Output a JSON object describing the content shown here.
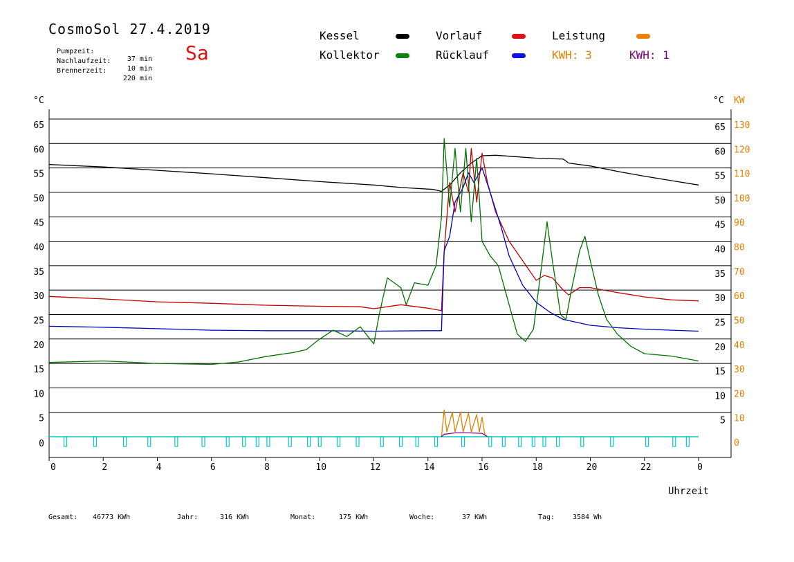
{
  "header": {
    "title": "CosmoSol 27.4.2019",
    "weekday": "Sa",
    "stats": [
      {
        "label": "Pumpzeit:",
        "value": "37 min"
      },
      {
        "label": "Nachlaufzeit:",
        "value": "10 min"
      },
      {
        "label": "Brennerzeit:",
        "value": "220 min"
      }
    ]
  },
  "legend": {
    "kessel": "Kessel",
    "vorlauf": "Vorlauf",
    "leistung": "Leistung",
    "kollektor": "Kollektor",
    "ruecklauf": "Rücklauf",
    "kwh_a": "KWH: 3",
    "kwh_b": "KWH: 1"
  },
  "colors": {
    "kessel": "#000000",
    "vorlauf": "#c00000",
    "leistung": "#e08000",
    "kollektor": "#007000",
    "ruecklauf": "#0000c0",
    "kwh_b": "#800080",
    "pump": "#00c8c8"
  },
  "footer": {
    "gesamt_label": "Gesamt:",
    "gesamt_value": "46773 KWh",
    "jahr_label": "Jahr:",
    "jahr_value": "316 KWh",
    "monat_label": "Monat:",
    "monat_value": "175 KWh",
    "woche_label": "Woche:",
    "woche_value": "37 KWh",
    "tag_label": "Tag:",
    "tag_value": "3584 Wh"
  },
  "chart_data": {
    "type": "line",
    "xlabel": "Uhrzeit",
    "x_ticks": [
      "0",
      "2",
      "4",
      "6",
      "8",
      "10",
      "12",
      "14",
      "16",
      "18",
      "20",
      "22",
      "0"
    ],
    "xlim": [
      0,
      24
    ],
    "ylabel_left": "°C",
    "ylabel_right_temp": "°C",
    "ylabel_right_power": "KW",
    "ylim": [
      0,
      65
    ],
    "y_ticks_left": [
      "0",
      "5",
      "10",
      "15",
      "20",
      "25",
      "30",
      "35",
      "40",
      "45",
      "50",
      "55",
      "60",
      "65"
    ],
    "y_ticks_right_temp": [
      "5",
      "10",
      "15",
      "20",
      "25",
      "30",
      "35",
      "40",
      "45",
      "50",
      "55",
      "60",
      "65"
    ],
    "y_ticks_right_power": [
      "0",
      "10",
      "20",
      "30",
      "40",
      "50",
      "60",
      "70",
      "80",
      "90",
      "100",
      "110",
      "120",
      "130"
    ],
    "grid": true,
    "series": [
      {
        "name": "Kessel",
        "color": "#000000",
        "points": [
          [
            0,
            55.7
          ],
          [
            2,
            55.2
          ],
          [
            4,
            54.5
          ],
          [
            6,
            53.8
          ],
          [
            8,
            53.0
          ],
          [
            10,
            52.2
          ],
          [
            12,
            51.5
          ],
          [
            13,
            51.0
          ],
          [
            14.2,
            50.6
          ],
          [
            14.5,
            50.2
          ],
          [
            14.8,
            51.5
          ],
          [
            15.2,
            54
          ],
          [
            15.6,
            56
          ],
          [
            16,
            57.5
          ],
          [
            16.5,
            57.6
          ],
          [
            17,
            57.4
          ],
          [
            18,
            57.0
          ],
          [
            19,
            56.8
          ],
          [
            19.2,
            56.0
          ],
          [
            20,
            55.4
          ],
          [
            21,
            54.3
          ],
          [
            22,
            53.3
          ],
          [
            23,
            52.4
          ],
          [
            24,
            51.5
          ]
        ]
      },
      {
        "name": "Vorlauf",
        "color": "#c00000",
        "points": [
          [
            0,
            28.7
          ],
          [
            2,
            28.2
          ],
          [
            4,
            27.6
          ],
          [
            6,
            27.3
          ],
          [
            8,
            26.9
          ],
          [
            10,
            26.7
          ],
          [
            11.5,
            26.6
          ],
          [
            12,
            26.2
          ],
          [
            13,
            27.0
          ],
          [
            14,
            26.3
          ],
          [
            14.5,
            25.8
          ],
          [
            14.6,
            38
          ],
          [
            14.8,
            52
          ],
          [
            15,
            46
          ],
          [
            15.3,
            54
          ],
          [
            15.5,
            50
          ],
          [
            15.6,
            59
          ],
          [
            15.8,
            48
          ],
          [
            16,
            58
          ],
          [
            16.2,
            52
          ],
          [
            16.5,
            46
          ],
          [
            17,
            40
          ],
          [
            17.5,
            36
          ],
          [
            18,
            32
          ],
          [
            18.3,
            33
          ],
          [
            18.6,
            32.5
          ],
          [
            19,
            30
          ],
          [
            19.2,
            29
          ],
          [
            19.6,
            30.5
          ],
          [
            20,
            30.5
          ],
          [
            21,
            29.5
          ],
          [
            22,
            28.6
          ],
          [
            23,
            28
          ],
          [
            24,
            27.8
          ]
        ]
      },
      {
        "name": "Rücklauf",
        "color": "#0000c0",
        "points": [
          [
            0,
            22.6
          ],
          [
            2,
            22.4
          ],
          [
            4,
            22.1
          ],
          [
            6,
            21.8
          ],
          [
            8,
            21.7
          ],
          [
            10,
            21.7
          ],
          [
            12,
            21.6
          ],
          [
            14,
            21.7
          ],
          [
            14.5,
            21.7
          ],
          [
            14.6,
            38
          ],
          [
            14.8,
            41
          ],
          [
            15,
            48
          ],
          [
            15.3,
            51
          ],
          [
            15.5,
            54
          ],
          [
            15.7,
            52
          ],
          [
            16,
            55
          ],
          [
            16.3,
            50
          ],
          [
            16.7,
            43
          ],
          [
            17,
            37
          ],
          [
            17.5,
            31
          ],
          [
            18,
            27.5
          ],
          [
            18.5,
            25.5
          ],
          [
            19,
            24
          ],
          [
            20,
            22.8
          ],
          [
            21,
            22.3
          ],
          [
            22,
            22
          ],
          [
            23,
            21.8
          ],
          [
            24,
            21.6
          ]
        ]
      },
      {
        "name": "Kollektor",
        "color": "#007000",
        "points": [
          [
            0,
            15.2
          ],
          [
            2,
            15.5
          ],
          [
            4,
            15
          ],
          [
            6,
            14.8
          ],
          [
            7,
            15.3
          ],
          [
            8,
            16.4
          ],
          [
            9,
            17.2
          ],
          [
            9.5,
            17.8
          ],
          [
            10,
            20
          ],
          [
            10.5,
            21.8
          ],
          [
            11,
            20.5
          ],
          [
            11.5,
            22.5
          ],
          [
            12,
            19
          ],
          [
            12.2,
            25
          ],
          [
            12.5,
            32.5
          ],
          [
            13,
            30.5
          ],
          [
            13.2,
            27
          ],
          [
            13.5,
            31.5
          ],
          [
            14,
            31
          ],
          [
            14.3,
            35
          ],
          [
            14.5,
            45
          ],
          [
            14.6,
            61
          ],
          [
            14.8,
            47
          ],
          [
            15,
            59
          ],
          [
            15.2,
            46
          ],
          [
            15.4,
            59
          ],
          [
            15.6,
            44
          ],
          [
            15.8,
            57
          ],
          [
            16,
            40
          ],
          [
            16.3,
            37
          ],
          [
            16.6,
            35
          ],
          [
            17,
            27
          ],
          [
            17.3,
            21
          ],
          [
            17.6,
            19.5
          ],
          [
            17.9,
            22
          ],
          [
            18.2,
            35
          ],
          [
            18.4,
            44
          ],
          [
            18.6,
            36
          ],
          [
            18.9,
            25
          ],
          [
            19.1,
            24
          ],
          [
            19.3,
            30
          ],
          [
            19.6,
            38
          ],
          [
            19.8,
            41
          ],
          [
            20,
            36
          ],
          [
            20.3,
            29
          ],
          [
            20.6,
            24
          ],
          [
            21,
            21
          ],
          [
            21.5,
            18.5
          ],
          [
            22,
            17
          ],
          [
            23,
            16.5
          ],
          [
            24,
            15.5
          ]
        ]
      },
      {
        "name": "Leistung",
        "color": "#e08000",
        "points": [
          [
            14.5,
            0
          ],
          [
            14.6,
            5.5
          ],
          [
            14.7,
            1
          ],
          [
            14.9,
            5
          ],
          [
            15,
            1
          ],
          [
            15.2,
            5
          ],
          [
            15.3,
            1
          ],
          [
            15.5,
            4.8
          ],
          [
            15.6,
            1
          ],
          [
            15.8,
            4.5
          ],
          [
            15.9,
            1
          ],
          [
            16,
            4
          ],
          [
            16.1,
            0.5
          ],
          [
            16.2,
            0
          ]
        ]
      },
      {
        "name": "KWH: 1",
        "color": "#800080",
        "points": [
          [
            14.5,
            0
          ],
          [
            14.6,
            0.5
          ],
          [
            15,
            0.8
          ],
          [
            15.5,
            0.8
          ],
          [
            16,
            0.7
          ],
          [
            16.2,
            0
          ]
        ]
      }
    ],
    "pump_markers_hours": [
      0.6,
      1.7,
      2.8,
      3.7,
      4.7,
      5.7,
      6.6,
      7.2,
      7.7,
      8.1,
      8.9,
      9.6,
      10.0,
      10.7,
      11.4,
      12.3,
      13.0,
      13.6,
      14.3,
      15.3,
      16.3,
      16.8,
      17.4,
      17.9,
      18.3,
      18.8,
      19.7,
      20.8,
      22.1,
      23.1,
      23.6
    ]
  }
}
